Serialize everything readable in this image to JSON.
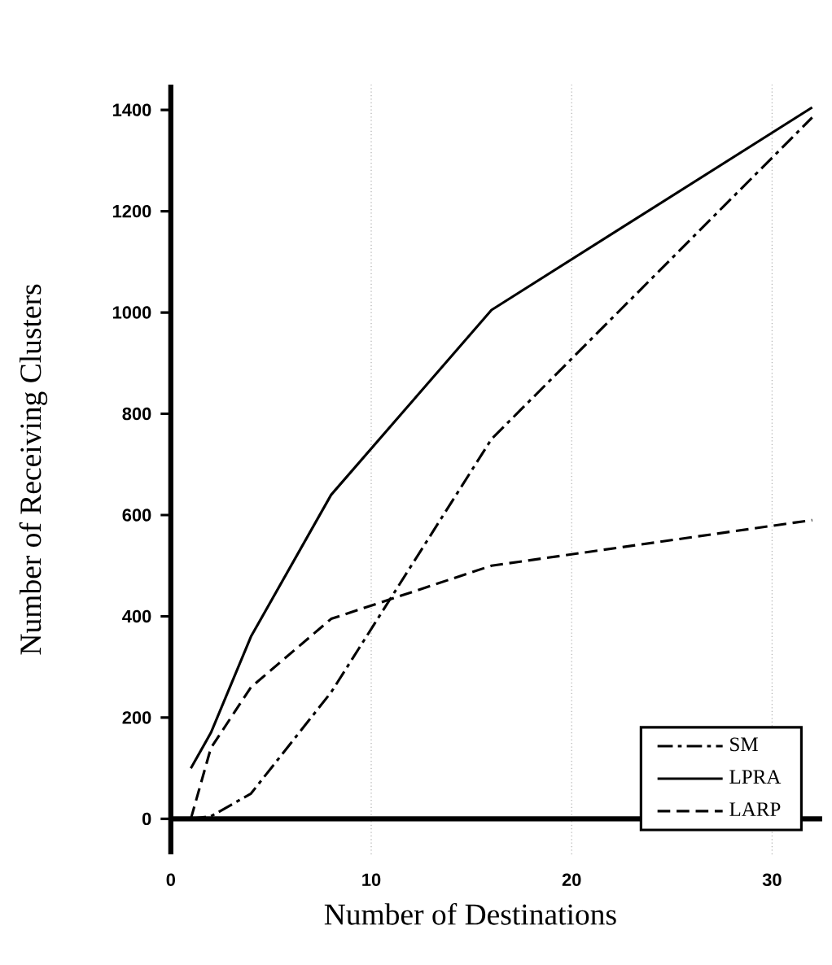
{
  "chart_data": {
    "type": "line",
    "xlabel": "Number of Destinations",
    "ylabel": "Number of Receiving Clusters",
    "xlim": [
      0,
      32.5
    ],
    "ylim": [
      -70,
      1450
    ],
    "xticks": [
      0,
      10,
      20,
      30
    ],
    "yticks": [
      0,
      200,
      400,
      600,
      800,
      1000,
      1200,
      1400
    ],
    "grid": "x",
    "legend": "bottom right",
    "marker": "none",
    "series": [
      {
        "name": "SM",
        "color": "#000000",
        "line_style": "dashdot",
        "x": [
          1,
          2,
          4,
          8,
          16,
          32
        ],
        "values": [
          0,
          5,
          50,
          250,
          750,
          1385
        ]
      },
      {
        "name": "LPRA",
        "color": "#000000",
        "line_style": "solid",
        "x": [
          1,
          2,
          4,
          8,
          16,
          32
        ],
        "values": [
          100,
          170,
          360,
          640,
          1005,
          1405
        ]
      },
      {
        "name": "LARP",
        "color": "#000000",
        "line_style": "dashed",
        "x": [
          1,
          2,
          4,
          8,
          16,
          32
        ],
        "values": [
          0,
          140,
          260,
          395,
          500,
          590
        ]
      }
    ]
  }
}
